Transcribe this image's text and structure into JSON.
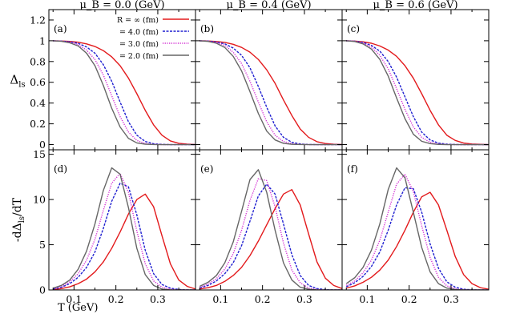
{
  "chart_data": {
    "type": "line",
    "layout": "2x3 grid of panels",
    "x": [
      0.05,
      0.07,
      0.09,
      0.11,
      0.13,
      0.15,
      0.17,
      0.19,
      0.21,
      0.23,
      0.25,
      0.27,
      0.29,
      0.31,
      0.33,
      0.35,
      0.37,
      0.39
    ],
    "xlabel": "T (GeV)",
    "xlim": [
      0.04,
      0.39
    ],
    "xticks": [
      0.1,
      0.2,
      0.3
    ],
    "column_titles": [
      "μ_B = 0.0 (GeV)",
      "μ_B = 0.4 (GeV)",
      "μ_B = 0.6 (GeV)"
    ],
    "legend": {
      "placement": "top-left panel, upper right",
      "entries": [
        {
          "label": "R = ∞   (fm)",
          "color": "#e31a1c",
          "dash": "solid"
        },
        {
          "label": "= 4.0 (fm)",
          "color": "#1f1fd0",
          "dash": "dashed"
        },
        {
          "label": "= 3.0 (fm)",
          "color": "#d22ad2",
          "dash": "dotted"
        },
        {
          "label": "= 2.0 (fm)",
          "color": "#666666",
          "dash": "solid"
        }
      ]
    },
    "rows": [
      {
        "ylabel": "Δls",
        "ylim": [
          -0.05,
          1.3
        ],
        "yticks": [
          0,
          0.2,
          0.4,
          0.6,
          0.8,
          1,
          1.2
        ],
        "yticklabels": [
          "0",
          "0.2",
          "0.4",
          "0.6",
          "0.8",
          "1",
          "1.2"
        ]
      },
      {
        "ylabel": "-dΔls/dT",
        "ylim": [
          0,
          15.5
        ],
        "yticks": [
          0,
          5,
          10,
          15
        ],
        "yticklabels": [
          "0",
          "5",
          "10",
          "15"
        ]
      }
    ],
    "panels": [
      {
        "label": "(a)",
        "row": 0,
        "col": 0,
        "series": [
          {
            "name": "R = ∞",
            "values": [
              1.0,
              0.998,
              0.994,
              0.986,
              0.97,
              0.945,
              0.905,
              0.845,
              0.76,
              0.64,
              0.49,
              0.33,
              0.19,
              0.09,
              0.035,
              0.012,
              0.004,
              0.001
            ]
          },
          {
            "name": "4.0 fm",
            "values": [
              1.0,
              0.997,
              0.99,
              0.975,
              0.94,
              0.88,
              0.77,
              0.61,
              0.41,
              0.22,
              0.09,
              0.03,
              0.008,
              0.002,
              0.0,
              0.0,
              0.0,
              0.0
            ]
          },
          {
            "name": "3.0 fm",
            "values": [
              1.0,
              0.996,
              0.986,
              0.962,
              0.91,
              0.82,
              0.67,
              0.47,
              0.27,
              0.12,
              0.04,
              0.01,
              0.002,
              0.0,
              0.0,
              0.0,
              0.0,
              0.0
            ]
          },
          {
            "name": "2.0 fm",
            "values": [
              1.0,
              0.995,
              0.98,
              0.95,
              0.88,
              0.76,
              0.57,
              0.35,
              0.17,
              0.06,
              0.016,
              0.004,
              0.001,
              0.0,
              0.0,
              0.0,
              0.0,
              0.0
            ]
          }
        ]
      },
      {
        "label": "(b)",
        "row": 0,
        "col": 1,
        "series": [
          {
            "name": "R = ∞",
            "values": [
              1.0,
              0.998,
              0.993,
              0.984,
              0.966,
              0.936,
              0.89,
              0.82,
              0.72,
              0.59,
              0.43,
              0.28,
              0.15,
              0.07,
              0.028,
              0.01,
              0.003,
              0.001
            ]
          },
          {
            "name": "4.0 fm",
            "values": [
              1.0,
              0.997,
              0.988,
              0.97,
              0.93,
              0.86,
              0.74,
              0.56,
              0.36,
              0.18,
              0.07,
              0.022,
              0.006,
              0.001,
              0.0,
              0.0,
              0.0,
              0.0
            ]
          },
          {
            "name": "3.0 fm",
            "values": [
              1.0,
              0.996,
              0.984,
              0.955,
              0.89,
              0.78,
              0.61,
              0.41,
              0.22,
              0.09,
              0.03,
              0.008,
              0.002,
              0.0,
              0.0,
              0.0,
              0.0,
              0.0
            ]
          },
          {
            "name": "2.0 fm",
            "values": [
              1.0,
              0.994,
              0.976,
              0.935,
              0.85,
              0.71,
              0.51,
              0.3,
              0.13,
              0.045,
              0.012,
              0.003,
              0.001,
              0.0,
              0.0,
              0.0,
              0.0,
              0.0
            ]
          }
        ]
      },
      {
        "label": "(c)",
        "row": 0,
        "col": 2,
        "series": [
          {
            "name": "R = ∞",
            "values": [
              1.0,
              0.997,
              0.99,
              0.976,
              0.95,
              0.91,
              0.85,
              0.76,
              0.64,
              0.49,
              0.33,
              0.19,
              0.09,
              0.04,
              0.015,
              0.005,
              0.002,
              0.0
            ]
          },
          {
            "name": "4.0 fm",
            "values": [
              1.0,
              0.996,
              0.984,
              0.955,
              0.9,
              0.8,
              0.65,
              0.46,
              0.27,
              0.12,
              0.045,
              0.014,
              0.004,
              0.001,
              0.0,
              0.0,
              0.0,
              0.0
            ]
          },
          {
            "name": "3.0 fm",
            "values": [
              1.0,
              0.995,
              0.978,
              0.94,
              0.86,
              0.73,
              0.54,
              0.34,
              0.17,
              0.07,
              0.022,
              0.006,
              0.001,
              0.0,
              0.0,
              0.0,
              0.0,
              0.0
            ]
          },
          {
            "name": "2.0 fm",
            "values": [
              1.0,
              0.993,
              0.97,
              0.92,
              0.82,
              0.66,
              0.45,
              0.25,
              0.1,
              0.032,
              0.009,
              0.002,
              0.0,
              0.0,
              0.0,
              0.0,
              0.0,
              0.0
            ]
          }
        ]
      },
      {
        "label": "(d)",
        "row": 1,
        "col": 0,
        "series": [
          {
            "name": "R = ∞",
            "values": [
              0.05,
              0.15,
              0.35,
              0.7,
              1.2,
              2.0,
              3.1,
              4.6,
              6.4,
              8.4,
              10.0,
              10.6,
              9.2,
              6.0,
              2.9,
              1.1,
              0.4,
              0.1
            ]
          },
          {
            "name": "4.0 fm",
            "values": [
              0.1,
              0.3,
              0.7,
              1.4,
              2.5,
              4.2,
              6.8,
              9.8,
              11.8,
              11.4,
              8.3,
              4.4,
              1.8,
              0.6,
              0.2,
              0.05,
              0.0,
              0.0
            ]
          },
          {
            "name": "3.0 fm",
            "values": [
              0.15,
              0.4,
              0.9,
              1.8,
              3.3,
              5.6,
              8.8,
              11.8,
              12.9,
              10.8,
              6.5,
              2.9,
              1.0,
              0.3,
              0.08,
              0.0,
              0.0,
              0.0
            ]
          },
          {
            "name": "2.0 fm",
            "values": [
              0.2,
              0.5,
              1.1,
              2.3,
              4.3,
              7.3,
              11.0,
              13.5,
              12.8,
              9.1,
              4.6,
              1.7,
              0.5,
              0.1,
              0.0,
              0.0,
              0.0,
              0.0
            ]
          }
        ]
      },
      {
        "label": "(e)",
        "row": 1,
        "col": 1,
        "series": [
          {
            "name": "R = ∞",
            "values": [
              0.1,
              0.25,
              0.5,
              0.95,
              1.6,
              2.5,
              3.8,
              5.4,
              7.2,
              9.0,
              10.6,
              11.1,
              9.4,
              6.2,
              3.1,
              1.3,
              0.5,
              0.15
            ]
          },
          {
            "name": "4.0 fm",
            "values": [
              0.2,
              0.5,
              1.0,
              1.8,
              3.0,
              4.9,
              7.6,
              10.4,
              11.7,
              10.6,
              7.3,
              3.9,
              1.6,
              0.5,
              0.15,
              0.04,
              0.0,
              0.0
            ]
          },
          {
            "name": "3.0 fm",
            "values": [
              0.3,
              0.65,
              1.25,
              2.3,
              4.0,
              6.6,
              9.9,
              12.3,
              12.1,
              9.2,
              5.2,
              2.2,
              0.8,
              0.2,
              0.05,
              0.0,
              0.0,
              0.0
            ]
          },
          {
            "name": "2.0 fm",
            "values": [
              0.4,
              0.85,
              1.6,
              3.0,
              5.3,
              8.7,
              12.2,
              13.3,
              10.8,
              6.6,
              3.0,
              1.1,
              0.3,
              0.08,
              0.0,
              0.0,
              0.0,
              0.0
            ]
          }
        ]
      },
      {
        "label": "(f)",
        "row": 1,
        "col": 2,
        "series": [
          {
            "name": "R = ∞",
            "values": [
              0.2,
              0.45,
              0.85,
              1.4,
              2.2,
              3.3,
              4.8,
              6.6,
              8.6,
              10.3,
              10.8,
              9.4,
              6.6,
              3.7,
              1.7,
              0.7,
              0.25,
              0.08
            ]
          },
          {
            "name": "4.0 fm",
            "values": [
              0.35,
              0.8,
              1.5,
              2.6,
              4.2,
              6.6,
              9.4,
              11.3,
              11.2,
              8.6,
              5.1,
              2.4,
              0.9,
              0.3,
              0.08,
              0.02,
              0.0,
              0.0
            ]
          },
          {
            "name": "3.0 fm",
            "values": [
              0.5,
              1.0,
              1.9,
              3.3,
              5.5,
              8.6,
              11.7,
              12.8,
              10.9,
              7.1,
              3.6,
              1.4,
              0.45,
              0.12,
              0.03,
              0.0,
              0.0,
              0.0
            ]
          },
          {
            "name": "2.0 fm",
            "values": [
              0.7,
              1.35,
              2.5,
              4.4,
              7.3,
              11.1,
              13.5,
              12.4,
              8.6,
              4.7,
              2.0,
              0.7,
              0.2,
              0.05,
              0.0,
              0.0,
              0.0,
              0.0
            ]
          }
        ]
      }
    ]
  }
}
